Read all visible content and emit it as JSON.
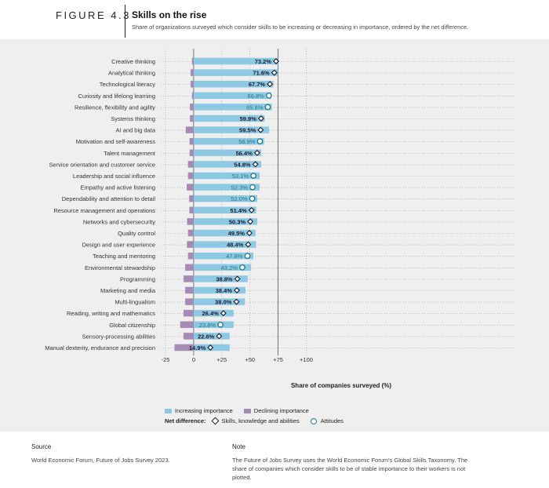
{
  "header": {
    "figure_label": "FIGURE 4.3",
    "title": "Skills on the rise",
    "subtitle": "Share of organizations surveyed which consider skills to be increasing or decreasing in importance, ordered by the net difference."
  },
  "legend": {
    "increasing_label": "Increasing importance",
    "declining_label": "Declining importance",
    "net_label": "Net difference:",
    "skills_label": "Skills, knowledge and abilities",
    "attitudes_label": "Attitudes"
  },
  "colors": {
    "increasing": "#8ec9e3",
    "declining": "#a58bb4",
    "skill_marker": "#1a1a2e",
    "attitude_marker": "#1d7a8c",
    "grid": "#9a9a9a"
  },
  "footer": {
    "source_heading": "Source",
    "source_text": "World Economic Forum, Future of Jobs Survey 2023.",
    "note_heading": "Note",
    "note_line1": "The Future of Jobs Survey uses the World Economic Forum's Global Skills Taxonomy. The",
    "note_line2": "share of companies which consider skills to be of stable importance to their workers is not",
    "note_line3": "plotted."
  },
  "chart_data": {
    "type": "bar",
    "orientation": "horizontal",
    "xlabel": "Share of companies surveyed (%)",
    "xlim": [
      -25,
      100
    ],
    "xticks": [
      -25,
      0,
      25,
      50,
      75,
      100
    ],
    "xtick_labels": [
      "-25",
      "0",
      "+25",
      "+50",
      "+75",
      "+100"
    ],
    "grid": true,
    "legend_position": "bottom-left",
    "categories": [
      "Creative thinking",
      "Analytical thinking",
      "Technological literacy",
      "Curiosity and lifelong learning",
      "Resilience, flexibility and agility",
      "Systems thinking",
      "AI and big data",
      "Motivation and self-awareness",
      "Talent management",
      "Service orientation and customer service",
      "Leadership and social influence",
      "Empathy and active listening",
      "Dependability and attention to detail",
      "Resource management and operations",
      "Networks and cybersecurity",
      "Quality control",
      "Design and user experience",
      "Teaching and mentoring",
      "Environmental stewardship",
      "Programming",
      "Marketing and media",
      "Multi-lingualism",
      "Reading, writing and mathematics",
      "Global citizenship",
      "Sensory-processing abilities",
      "Manual dexterity, endurance and precision"
    ],
    "series": [
      {
        "name": "Increasing importance",
        "values": [
          75.0,
          75.0,
          70.8,
          69.0,
          69.5,
          63.0,
          67.0,
          62.5,
          60.0,
          60.0,
          58.5,
          58.5,
          56.5,
          55.5,
          56.5,
          55.0,
          55.5,
          53.0,
          51.0,
          48.0,
          46.0,
          45.5,
          35.5,
          35.5,
          32.0,
          32.0
        ]
      },
      {
        "name": "Declining importance",
        "values": [
          -1.5,
          -2.7,
          -2.7,
          -1.5,
          -3.3,
          -3.3,
          -7.0,
          -3.6,
          -3.6,
          -5.0,
          -5.0,
          -6.2,
          -4.0,
          -3.8,
          -5.8,
          -5.0,
          -6.0,
          -5.0,
          -7.5,
          -9.0,
          -7.5,
          -7.5,
          -9.0,
          -12.0,
          -9.0,
          -17.0
        ]
      }
    ],
    "net_difference": {
      "name": "Net difference",
      "values": [
        73.2,
        71.6,
        67.7,
        66.8,
        65.8,
        59.9,
        59.5,
        58.9,
        56.4,
        54.8,
        53.1,
        52.3,
        52.0,
        51.4,
        50.3,
        49.5,
        48.4,
        47.8,
        43.2,
        38.8,
        38.4,
        38.0,
        26.4,
        23.8,
        22.6,
        14.9
      ],
      "labels": [
        "73.2%",
        "71.6%",
        "67.7%",
        "66.8%",
        "65.8%",
        "59.9%",
        "59.5%",
        "58.9%",
        "56.4%",
        "54.8%",
        "53.1%",
        "52.3%",
        "52.0%",
        "51.4%",
        "50.3%",
        "49.5%",
        "48.4%",
        "47.8%",
        "43.2%",
        "38.8%",
        "38.4%",
        "38.0%",
        "26.4%",
        "23.8%",
        "22.6%",
        "14.9%"
      ],
      "marker_type": [
        "skill",
        "skill",
        "skill",
        "attitude",
        "attitude",
        "skill",
        "skill",
        "attitude",
        "skill",
        "skill",
        "attitude",
        "attitude",
        "attitude",
        "skill",
        "skill",
        "skill",
        "skill",
        "attitude",
        "attitude",
        "skill",
        "skill",
        "skill",
        "skill",
        "attitude",
        "skill",
        "skill"
      ]
    }
  }
}
